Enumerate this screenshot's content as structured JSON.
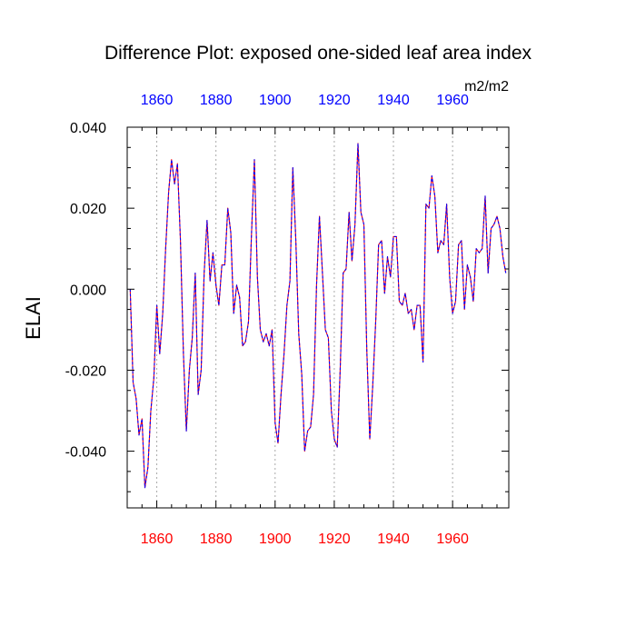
{
  "chart_data": {
    "type": "line",
    "title": "Difference Plot: exposed one-sided leaf area index",
    "units": "m2/m2",
    "ylabel": "ELAI",
    "xlabel": "",
    "xlim": [
      1850,
      1979
    ],
    "ylim": [
      -0.054,
      0.04
    ],
    "x_ticks": [
      1860,
      1880,
      1900,
      1920,
      1940,
      1960
    ],
    "x_tick_labels": [
      "1860",
      "1880",
      "1900",
      "1920",
      "1940",
      "1960"
    ],
    "y_ticks": [
      0.04,
      0.02,
      0.0,
      -0.02,
      -0.04
    ],
    "y_tick_labels": [
      "0.040",
      "0.020",
      "0.000",
      "-0.020",
      "-0.040"
    ],
    "grid": "vertical dotted at major x ticks",
    "colors": {
      "top_axis_labels": "#0000ff",
      "bottom_axis_labels": "#ff0000",
      "series_a": "#ff0000",
      "series_b": "#0000ff"
    },
    "series": [
      {
        "name": "difference",
        "x": [
          1851,
          1852,
          1853,
          1854,
          1855,
          1856,
          1857,
          1858,
          1859,
          1860,
          1861,
          1862,
          1863,
          1864,
          1865,
          1866,
          1867,
          1868,
          1869,
          1870,
          1871,
          1872,
          1873,
          1874,
          1875,
          1876,
          1877,
          1878,
          1879,
          1880,
          1881,
          1882,
          1883,
          1884,
          1885,
          1886,
          1887,
          1888,
          1889,
          1890,
          1891,
          1892,
          1893,
          1894,
          1895,
          1896,
          1897,
          1898,
          1899,
          1900,
          1901,
          1902,
          1903,
          1904,
          1905,
          1906,
          1907,
          1908,
          1909,
          1910,
          1911,
          1912,
          1913,
          1914,
          1915,
          1916,
          1917,
          1918,
          1919,
          1920,
          1921,
          1922,
          1923,
          1924,
          1925,
          1926,
          1927,
          1928,
          1929,
          1930,
          1931,
          1932,
          1933,
          1934,
          1935,
          1936,
          1937,
          1938,
          1939,
          1940,
          1941,
          1942,
          1943,
          1944,
          1945,
          1946,
          1947,
          1948,
          1949,
          1950,
          1951,
          1952,
          1953,
          1954,
          1955,
          1956,
          1957,
          1958,
          1959,
          1960,
          1961,
          1962,
          1963,
          1964,
          1965,
          1966,
          1967,
          1968,
          1969,
          1970,
          1971,
          1972,
          1973,
          1974,
          1975,
          1976,
          1977,
          1978
        ],
        "values": [
          0.0,
          -0.023,
          -0.027,
          -0.036,
          -0.032,
          -0.049,
          -0.044,
          -0.03,
          -0.022,
          -0.004,
          -0.016,
          -0.006,
          0.01,
          0.024,
          0.032,
          0.026,
          0.031,
          0.012,
          -0.016,
          -0.035,
          -0.02,
          -0.012,
          0.004,
          -0.026,
          -0.02,
          0.004,
          0.017,
          0.002,
          0.009,
          0.001,
          -0.004,
          0.006,
          0.006,
          0.02,
          0.014,
          -0.006,
          0.001,
          -0.002,
          -0.014,
          -0.013,
          -0.008,
          0.013,
          0.032,
          0.003,
          -0.01,
          -0.013,
          -0.011,
          -0.014,
          -0.01,
          -0.033,
          -0.038,
          -0.026,
          -0.016,
          -0.004,
          0.002,
          0.03,
          0.012,
          -0.011,
          -0.021,
          -0.04,
          -0.035,
          -0.034,
          -0.026,
          0.001,
          0.018,
          0.004,
          -0.01,
          -0.012,
          -0.03,
          -0.037,
          -0.039,
          -0.02,
          0.004,
          0.005,
          0.019,
          0.007,
          0.016,
          0.036,
          0.019,
          0.016,
          -0.015,
          -0.037,
          -0.024,
          -0.008,
          0.011,
          0.012,
          -0.001,
          0.008,
          0.003,
          0.013,
          0.013,
          -0.003,
          -0.004,
          -0.001,
          -0.006,
          -0.005,
          -0.01,
          -0.004,
          -0.004,
          -0.018,
          0.021,
          0.02,
          0.028,
          0.023,
          0.009,
          0.012,
          0.011,
          0.021,
          0.003,
          -0.006,
          -0.003,
          0.011,
          0.012,
          -0.005,
          0.006,
          0.003,
          -0.003,
          0.01,
          0.009,
          0.01,
          0.023,
          0.004,
          0.015,
          0.016,
          0.018,
          0.015,
          0.008,
          0.004
        ]
      }
    ]
  }
}
